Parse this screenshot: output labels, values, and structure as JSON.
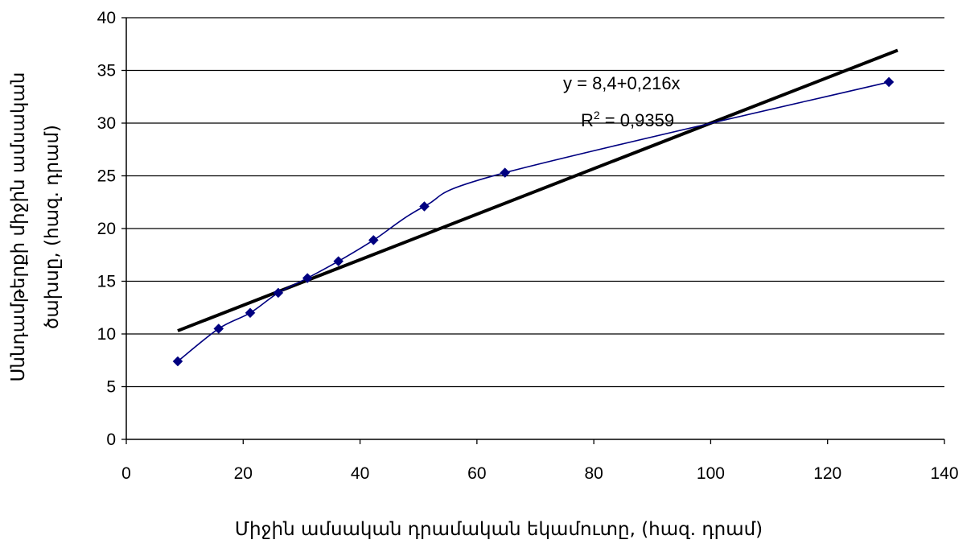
{
  "chart_data": {
    "type": "scatter",
    "title": "",
    "xlabel": "Միջին ամսական դրամական եկամուտը, (հազ. դրամ)",
    "ylabel_line1": "Սննդամթերքի միջին ամսական",
    "ylabel_line2": "ծախսը, (հազ. դրամ)",
    "xlim": [
      0,
      140
    ],
    "ylim": [
      0,
      40
    ],
    "x_ticks": [
      "0",
      "20",
      "40",
      "60",
      "80",
      "100",
      "120",
      "140"
    ],
    "y_ticks": [
      "0",
      "5",
      "10",
      "15",
      "20",
      "25",
      "30",
      "35",
      "40"
    ],
    "grid": "horizontal",
    "legend": "none",
    "series": [
      {
        "x": [
          8.8,
          15.8,
          21.2,
          26.0,
          31.0,
          36.3,
          42.3,
          51.0,
          64.8,
          130.5
        ],
        "y": [
          7.4,
          10.5,
          12.0,
          13.9,
          15.3,
          16.9,
          18.9,
          22.1,
          25.3,
          33.9
        ],
        "style": "smoothed line with diamond markers",
        "color": "#000080"
      }
    ],
    "trendline": {
      "type": "linear",
      "intercept": 8.4,
      "slope": 0.216,
      "x_range": [
        8.8,
        132.0
      ],
      "color": "#000000",
      "equation_label": "y = 8,4+0,216x",
      "r2_prefix": "R",
      "r2_sup": "2",
      "r2_value": " = 0,9359"
    }
  }
}
